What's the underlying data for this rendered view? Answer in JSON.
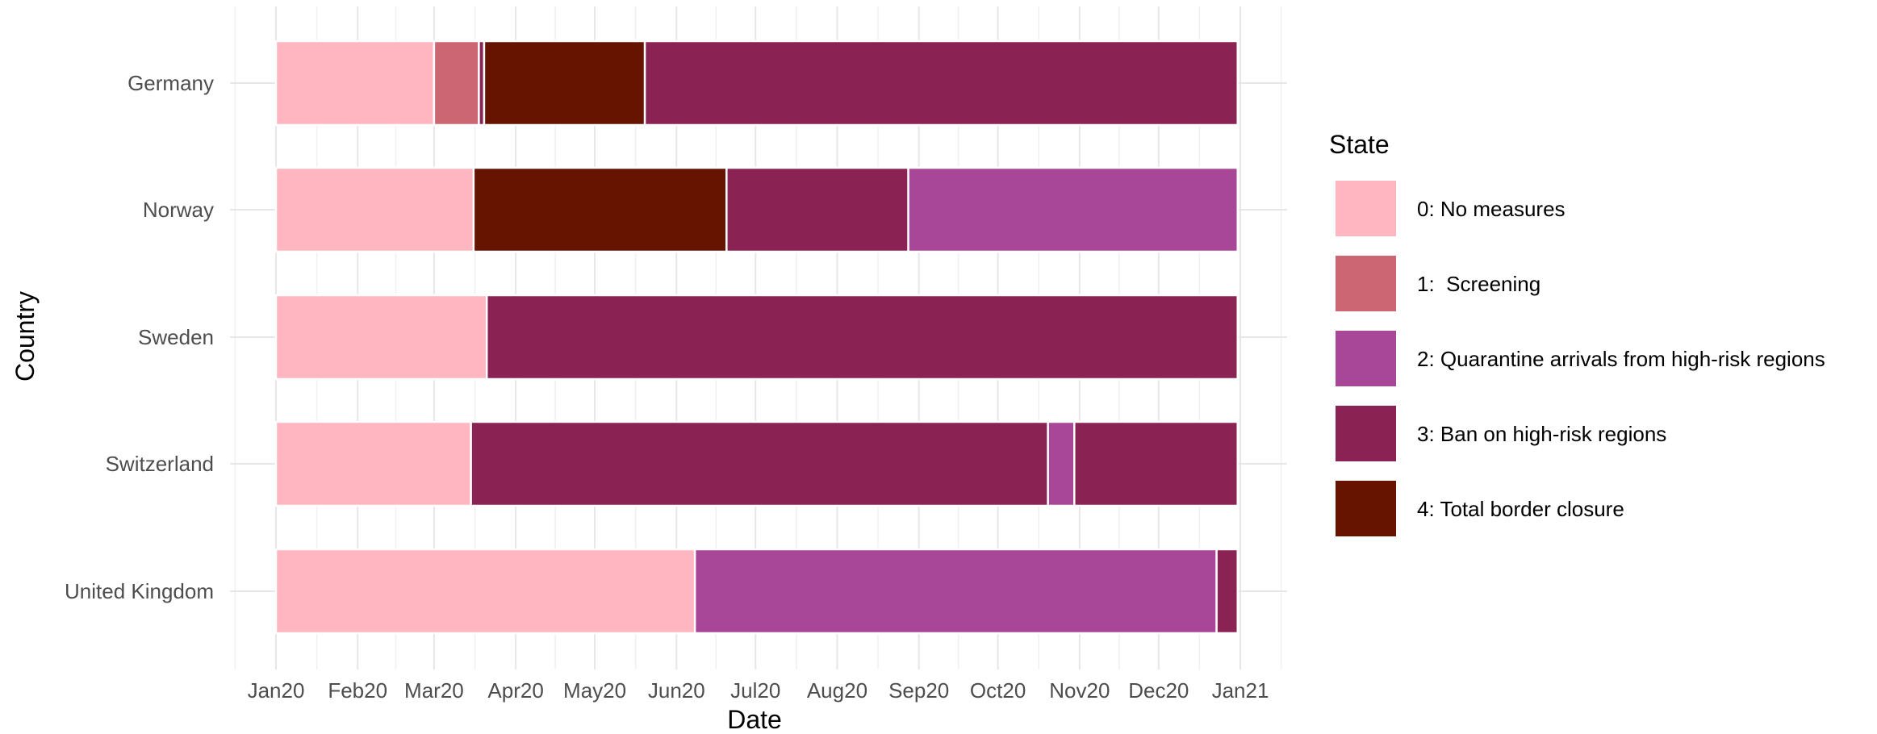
{
  "chart_data": {
    "type": "bar",
    "orientation": "horizontal",
    "stacked_timeline": true,
    "xlabel": "Date",
    "ylabel": "Country",
    "xlim": [
      "2020-01-01",
      "2021-01-01"
    ],
    "x_ticks": [
      {
        "date": "2020-01-01",
        "label": "Jan20"
      },
      {
        "date": "2020-02-01",
        "label": "Feb20"
      },
      {
        "date": "2020-03-01",
        "label": "Mar20"
      },
      {
        "date": "2020-04-01",
        "label": "Apr20"
      },
      {
        "date": "2020-05-01",
        "label": "May20"
      },
      {
        "date": "2020-06-01",
        "label": "Jun20"
      },
      {
        "date": "2020-07-01",
        "label": "Jul20"
      },
      {
        "date": "2020-08-01",
        "label": "Aug20"
      },
      {
        "date": "2020-09-01",
        "label": "Sep20"
      },
      {
        "date": "2020-10-01",
        "label": "Oct20"
      },
      {
        "date": "2020-11-01",
        "label": "Nov20"
      },
      {
        "date": "2020-12-01",
        "label": "Dec20"
      },
      {
        "date": "2021-01-01",
        "label": "Jan21"
      }
    ],
    "grid": true,
    "legend": {
      "title": "State",
      "position": "right",
      "entries": [
        {
          "state": 0,
          "label": "0: No measures",
          "color": "#FFB6C1"
        },
        {
          "state": 1,
          "label": "1:  Screening",
          "color": "#CD6673"
        },
        {
          "state": 2,
          "label": "2: Quarantine arrivals from high-risk regions",
          "color": "#A84697"
        },
        {
          "state": 3,
          "label": "3: Ban on high-risk regions",
          "color": "#8A2253"
        },
        {
          "state": 4,
          "label": "4: Total border closure",
          "color": "#661300"
        }
      ]
    },
    "categories": [
      "Germany",
      "Norway",
      "Sweden",
      "Switzerland",
      "United Kingdom"
    ],
    "series": [
      {
        "country": "Germany",
        "segments": [
          {
            "state": 0,
            "start": "2020-01-01",
            "end": "2020-03-01"
          },
          {
            "state": 1,
            "start": "2020-03-01",
            "end": "2020-03-18"
          },
          {
            "state": 3,
            "start": "2020-03-18",
            "end": "2020-03-20"
          },
          {
            "state": 4,
            "start": "2020-03-20",
            "end": "2020-05-20"
          },
          {
            "state": 3,
            "start": "2020-05-20",
            "end": "2020-12-31"
          }
        ]
      },
      {
        "country": "Norway",
        "segments": [
          {
            "state": 0,
            "start": "2020-01-01",
            "end": "2020-03-16"
          },
          {
            "state": 4,
            "start": "2020-03-16",
            "end": "2020-06-20"
          },
          {
            "state": 3,
            "start": "2020-06-20",
            "end": "2020-08-28"
          },
          {
            "state": 2,
            "start": "2020-08-28",
            "end": "2020-12-31"
          }
        ]
      },
      {
        "country": "Sweden",
        "segments": [
          {
            "state": 0,
            "start": "2020-01-01",
            "end": "2020-03-21"
          },
          {
            "state": 3,
            "start": "2020-03-21",
            "end": "2020-12-31"
          }
        ]
      },
      {
        "country": "Switzerland",
        "segments": [
          {
            "state": 0,
            "start": "2020-01-01",
            "end": "2020-03-15"
          },
          {
            "state": 3,
            "start": "2020-03-15",
            "end": "2020-10-20"
          },
          {
            "state": 2,
            "start": "2020-10-20",
            "end": "2020-10-30"
          },
          {
            "state": 3,
            "start": "2020-10-30",
            "end": "2020-12-31"
          }
        ]
      },
      {
        "country": "United Kingdom",
        "segments": [
          {
            "state": 0,
            "start": "2020-01-01",
            "end": "2020-06-08"
          },
          {
            "state": 2,
            "start": "2020-06-08",
            "end": "2020-12-23"
          },
          {
            "state": 3,
            "start": "2020-12-23",
            "end": "2020-12-31"
          }
        ]
      }
    ]
  }
}
